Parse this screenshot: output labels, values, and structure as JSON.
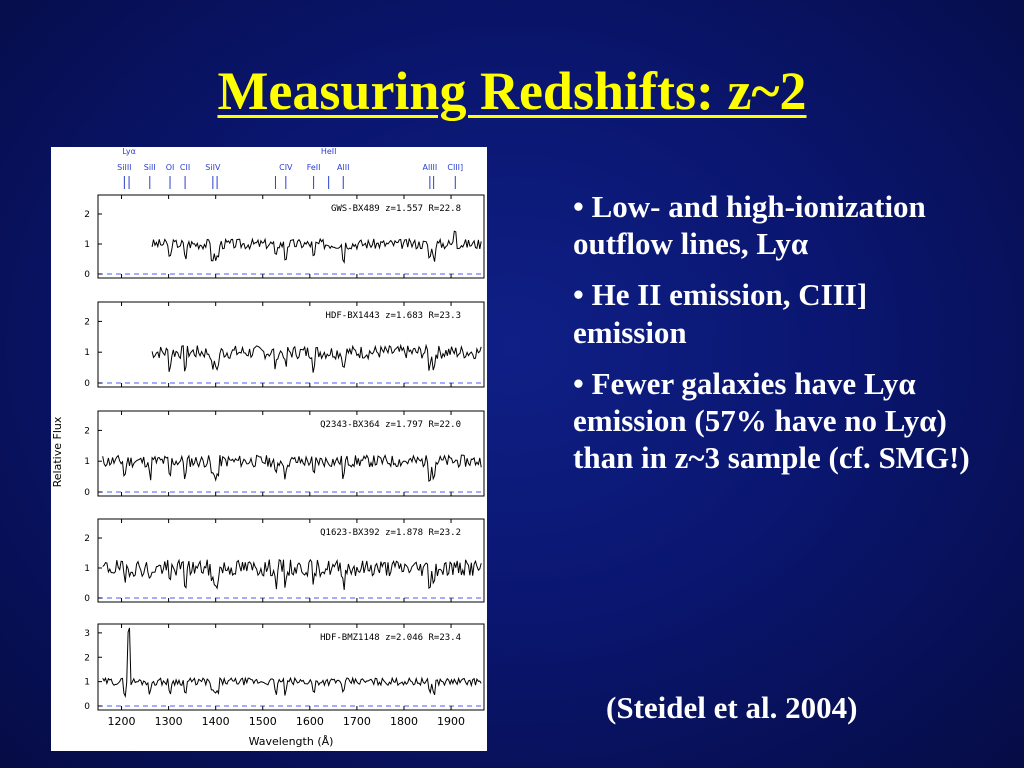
{
  "slide": {
    "title": "Measuring Redshifts: z~2",
    "bullets": [
      {
        "prefix": "• Low- and high-ionization outflow lines, Ly",
        "greek": "α",
        "suffix": ""
      },
      {
        "prefix": "• He II emission, CIII] emission",
        "greek": "",
        "suffix": ""
      },
      {
        "prefix": "• Fewer galaxies have Ly",
        "greek": "α",
        "suffix": " emission (57% have no Ly",
        "greek2": "α",
        "suffix2": ") than in z~3 sample (cf. SMG!)"
      }
    ],
    "citation": "(Steidel et al. 2004)"
  },
  "chart_data": {
    "type": "line",
    "xlabel": "Wavelength (Å)",
    "ylabel": "Relative Flux",
    "xlim": [
      1150,
      1970
    ],
    "x_ticks": [
      1200,
      1300,
      1400,
      1500,
      1600,
      1700,
      1800,
      1900
    ],
    "lines": [
      {
        "label": "SiIII",
        "x": 1206
      },
      {
        "label": "Lyα",
        "x": 1216
      },
      {
        "label": "SiII",
        "x": 1260
      },
      {
        "label": "OI",
        "x": 1303
      },
      {
        "label": "CII",
        "x": 1335
      },
      {
        "label": "SiIV",
        "x": 1394
      },
      {
        "label": "SiIV",
        "x": 1403
      },
      {
        "label": "SiII",
        "x": 1527
      },
      {
        "label": "CIV",
        "x": 1549
      },
      {
        "label": "FeII",
        "x": 1608
      },
      {
        "label": "HeII",
        "x": 1640
      },
      {
        "label": "AlII",
        "x": 1671
      },
      {
        "label": "AlIII",
        "x": 1855
      },
      {
        "label": "AlIII",
        "x": 1863
      },
      {
        "label": "CIII]",
        "x": 1909
      }
    ],
    "panels": [
      {
        "name": "GWS-BX489 z=1.557 R=22.8",
        "yticks": [
          "2",
          "1",
          "0"
        ],
        "ymax": 2.5,
        "start": 1265,
        "noise": 0.17,
        "seed": 3,
        "emission": [
          {
            "x": 1909,
            "amp": 0.5
          }
        ]
      },
      {
        "name": "HDF-BX1443 z=1.683 R=23.3",
        "yticks": [
          "2",
          "1",
          "0"
        ],
        "ymax": 2.5,
        "start": 1265,
        "noise": 0.22,
        "seed": 7,
        "emission": []
      },
      {
        "name": "Q2343-BX364 z=1.797 R=22.0",
        "yticks": [
          "2",
          "1",
          "0"
        ],
        "ymax": 2.5,
        "start": 1160,
        "noise": 0.2,
        "seed": 11,
        "emission": []
      },
      {
        "name": "Q1623-BX392 z=1.878 R=23.2",
        "yticks": [
          "2",
          "1",
          "0"
        ],
        "ymax": 2.5,
        "start": 1160,
        "noise": 0.28,
        "seed": 19,
        "emission": []
      },
      {
        "name": "HDF-BMZ1148 z=2.046 R=23.4",
        "yticks": [
          "3",
          "2",
          "1",
          "0"
        ],
        "ymax": 3.2,
        "start": 1160,
        "noise": 0.15,
        "seed": 29,
        "emission": [
          {
            "x": 1216,
            "amp": 2.1
          }
        ]
      }
    ]
  }
}
